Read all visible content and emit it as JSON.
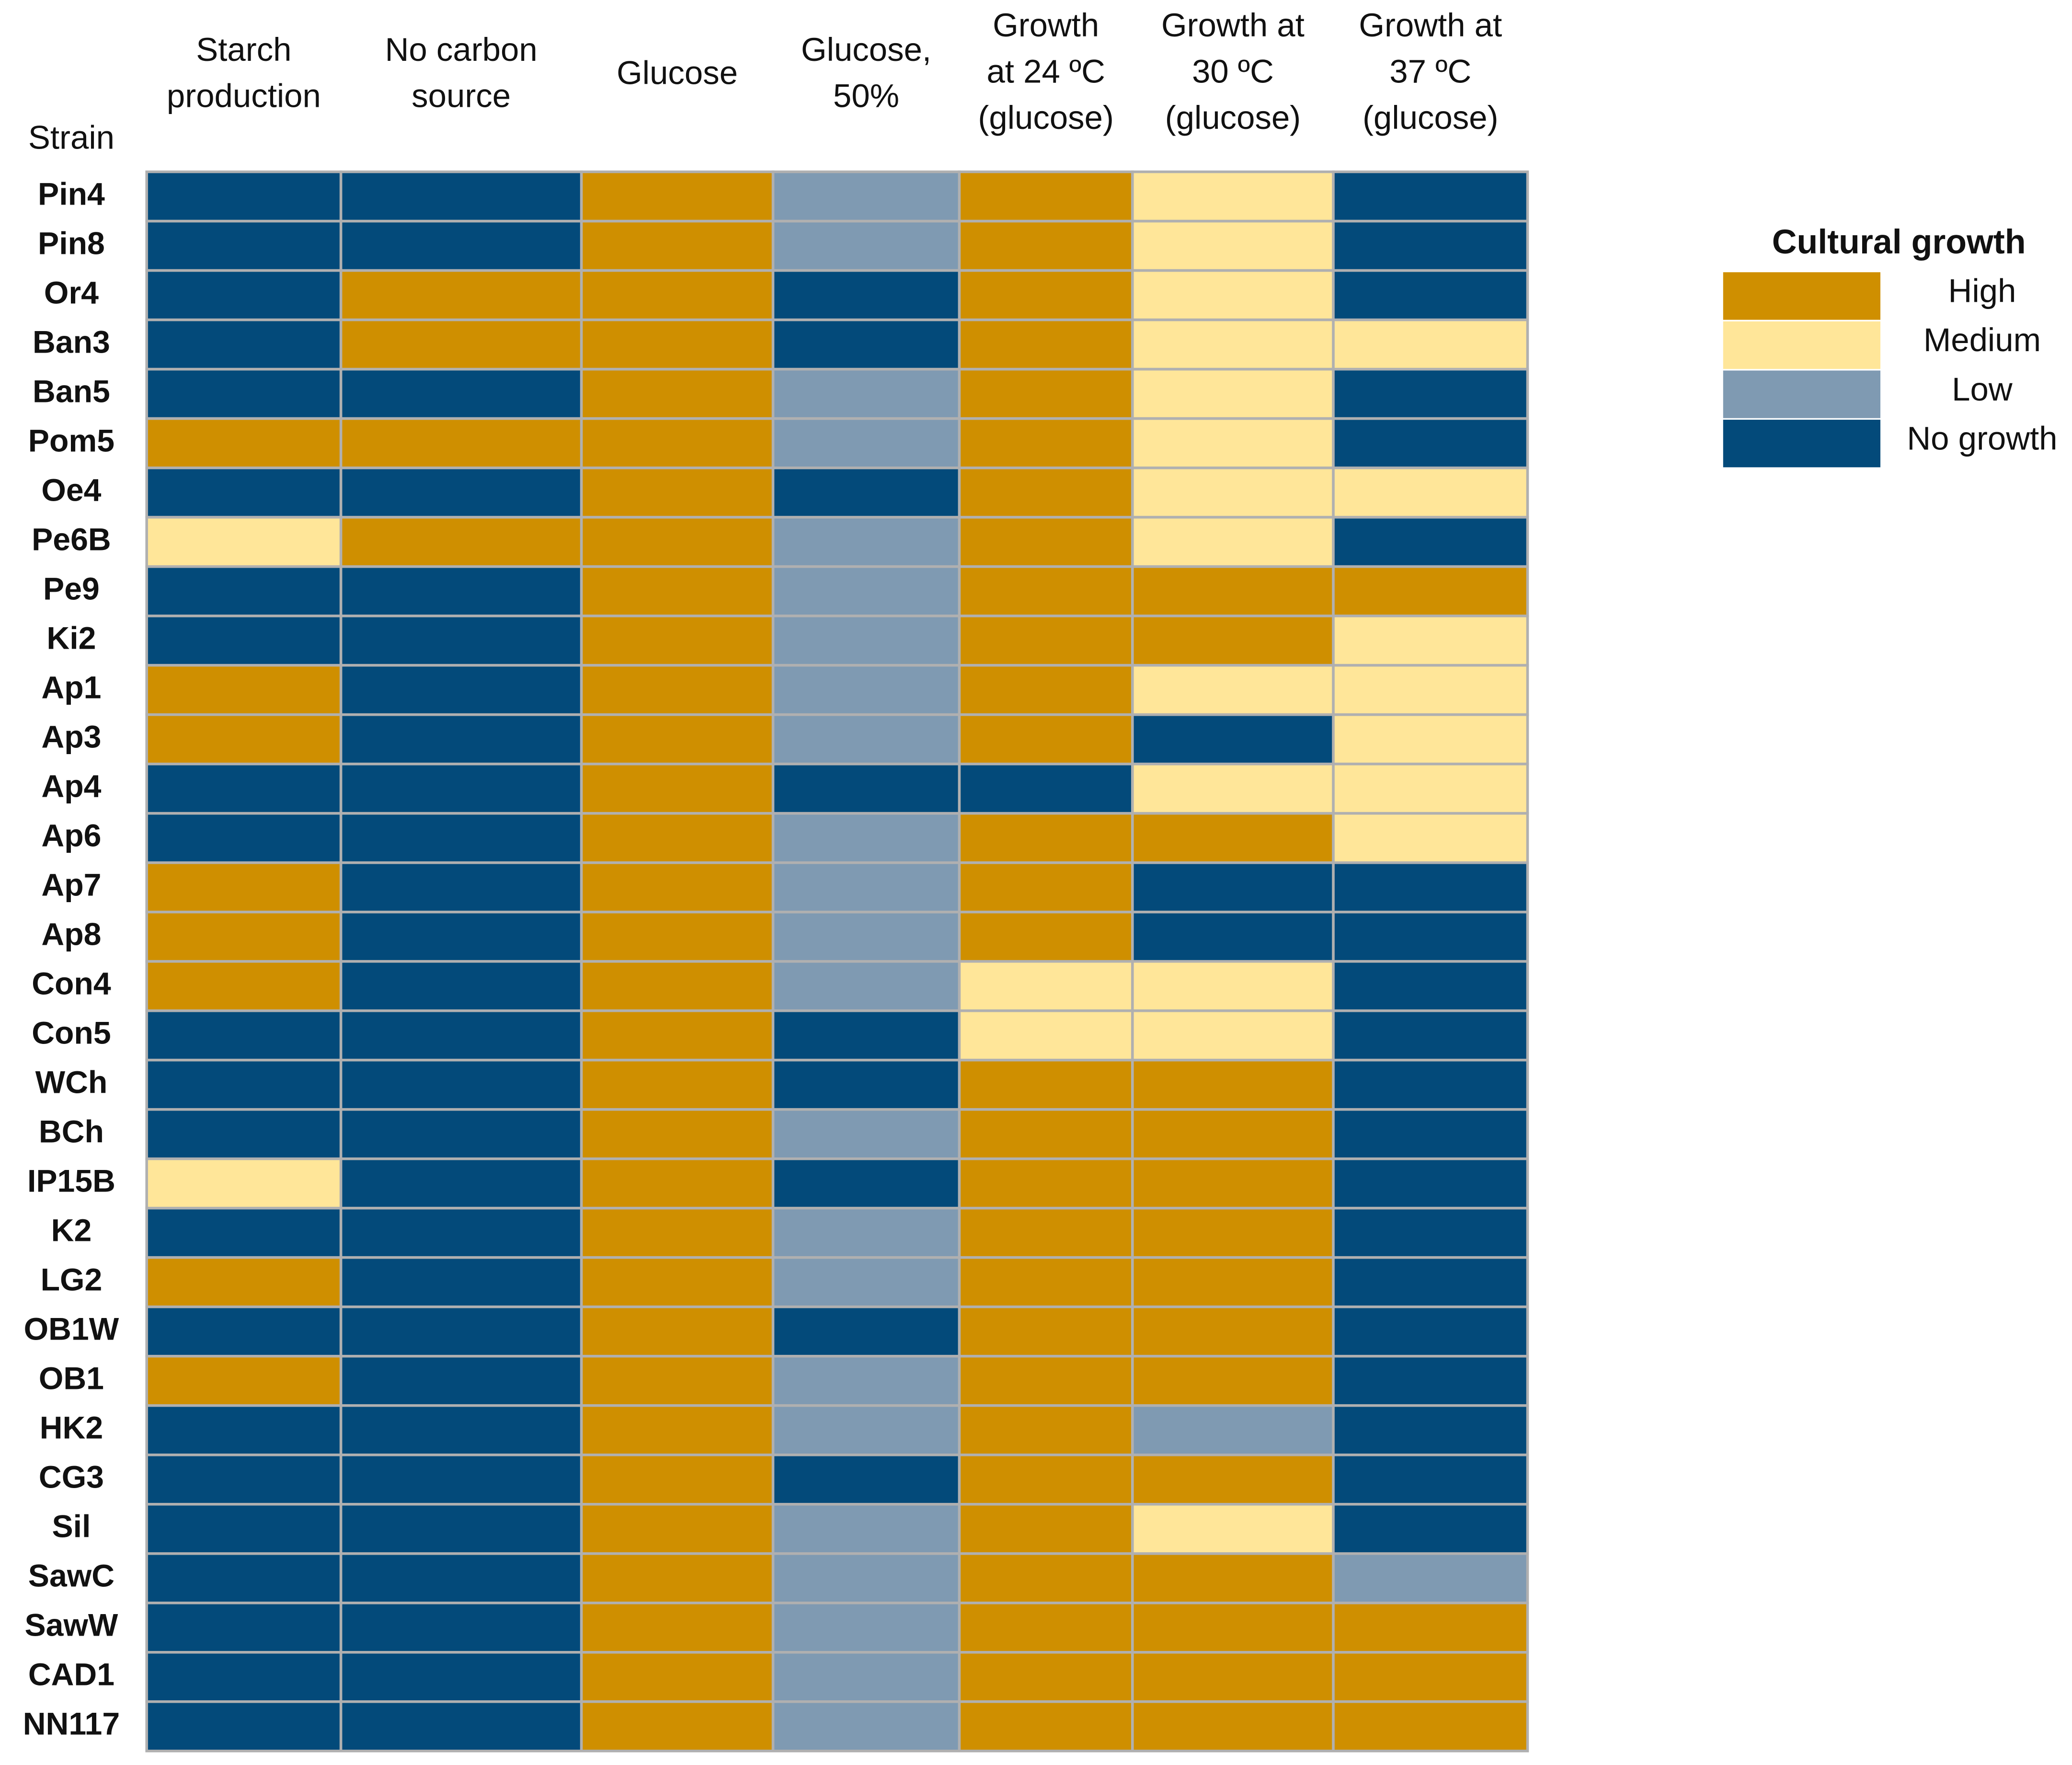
{
  "chart_data": {
    "type": "heatmap",
    "row_header": "Strain",
    "columns": [
      [
        "Starch",
        "production"
      ],
      [
        "No carbon",
        "source"
      ],
      [
        "Glucose"
      ],
      [
        "Glucose,",
        "50%"
      ],
      [
        "Growth",
        "at 24 ºC",
        "(glucose)"
      ],
      [
        "Growth at",
        "30 ºC",
        "(glucose)"
      ],
      [
        "Growth at",
        "37 ºC",
        "(glucose)"
      ]
    ],
    "rows": [
      "Pin4",
      "Pin8",
      "Or4",
      "Ban3",
      "Ban5",
      "Pom5",
      "Oe4",
      "Pe6B",
      "Pe9",
      "Ki2",
      "Ap1",
      "Ap3",
      "Ap4",
      "Ap6",
      "Ap7",
      "Ap8",
      "Con4",
      "Con5",
      "WCh",
      "BCh",
      "IP15B",
      "K2",
      "LG2",
      "OB1W",
      "OB1",
      "HK2",
      "CG3",
      "Sil",
      "SawC",
      "SawW",
      "CAD1",
      "NN117"
    ],
    "values": [
      [
        "No growth",
        "No growth",
        "High",
        "Low",
        "High",
        "Medium",
        "No growth"
      ],
      [
        "No growth",
        "No growth",
        "High",
        "Low",
        "High",
        "Medium",
        "No growth"
      ],
      [
        "No growth",
        "High",
        "High",
        "No growth",
        "High",
        "Medium",
        "No growth"
      ],
      [
        "No growth",
        "High",
        "High",
        "No growth",
        "High",
        "Medium",
        "Medium"
      ],
      [
        "No growth",
        "No growth",
        "High",
        "Low",
        "High",
        "Medium",
        "No growth"
      ],
      [
        "High",
        "High",
        "High",
        "Low",
        "High",
        "Medium",
        "No growth"
      ],
      [
        "No growth",
        "No growth",
        "High",
        "No growth",
        "High",
        "Medium",
        "Medium"
      ],
      [
        "Medium",
        "High",
        "High",
        "Low",
        "High",
        "Medium",
        "No growth"
      ],
      [
        "No growth",
        "No growth",
        "High",
        "Low",
        "High",
        "High",
        "High"
      ],
      [
        "No growth",
        "No growth",
        "High",
        "Low",
        "High",
        "High",
        "Medium"
      ],
      [
        "High",
        "No growth",
        "High",
        "Low",
        "High",
        "Medium",
        "Medium"
      ],
      [
        "High",
        "No growth",
        "High",
        "Low",
        "High",
        "No growth",
        "Medium"
      ],
      [
        "No growth",
        "No growth",
        "High",
        "No growth",
        "No growth",
        "Medium",
        "Medium"
      ],
      [
        "No growth",
        "No growth",
        "High",
        "Low",
        "High",
        "High",
        "Medium"
      ],
      [
        "High",
        "No growth",
        "High",
        "Low",
        "High",
        "No growth",
        "No growth"
      ],
      [
        "High",
        "No growth",
        "High",
        "Low",
        "High",
        "No growth",
        "No growth"
      ],
      [
        "High",
        "No growth",
        "High",
        "Low",
        "Medium",
        "Medium",
        "No growth"
      ],
      [
        "No growth",
        "No growth",
        "High",
        "No growth",
        "Medium",
        "Medium",
        "No growth"
      ],
      [
        "No growth",
        "No growth",
        "High",
        "No growth",
        "High",
        "High",
        "No growth"
      ],
      [
        "No growth",
        "No growth",
        "High",
        "Low",
        "High",
        "High",
        "No growth"
      ],
      [
        "Medium",
        "No growth",
        "High",
        "No growth",
        "High",
        "High",
        "No growth"
      ],
      [
        "No growth",
        "No growth",
        "High",
        "Low",
        "High",
        "High",
        "No growth"
      ],
      [
        "High",
        "No growth",
        "High",
        "Low",
        "High",
        "High",
        "No growth"
      ],
      [
        "No growth",
        "No growth",
        "High",
        "No growth",
        "High",
        "High",
        "No growth"
      ],
      [
        "High",
        "No growth",
        "High",
        "Low",
        "High",
        "High",
        "No growth"
      ],
      [
        "No growth",
        "No growth",
        "High",
        "Low",
        "High",
        "Low",
        "No growth"
      ],
      [
        "No growth",
        "No growth",
        "High",
        "No growth",
        "High",
        "High",
        "No growth"
      ],
      [
        "No growth",
        "No growth",
        "High",
        "Low",
        "High",
        "Medium",
        "No growth"
      ],
      [
        "No growth",
        "No growth",
        "High",
        "Low",
        "High",
        "High",
        "Low"
      ],
      [
        "No growth",
        "No growth",
        "High",
        "Low",
        "High",
        "High",
        "High"
      ],
      [
        "No growth",
        "No growth",
        "High",
        "Low",
        "High",
        "High",
        "High"
      ],
      [
        "No growth",
        "No growth",
        "High",
        "Low",
        "High",
        "High",
        "High"
      ]
    ],
    "legend": {
      "title": "Cultural growth",
      "levels": [
        {
          "name": "High",
          "color": "#cf8f00"
        },
        {
          "name": "Medium",
          "color": "#ffe699"
        },
        {
          "name": "Low",
          "color": "#7f9ab2"
        },
        {
          "name": "No growth",
          "color": "#034a7a"
        }
      ]
    }
  }
}
